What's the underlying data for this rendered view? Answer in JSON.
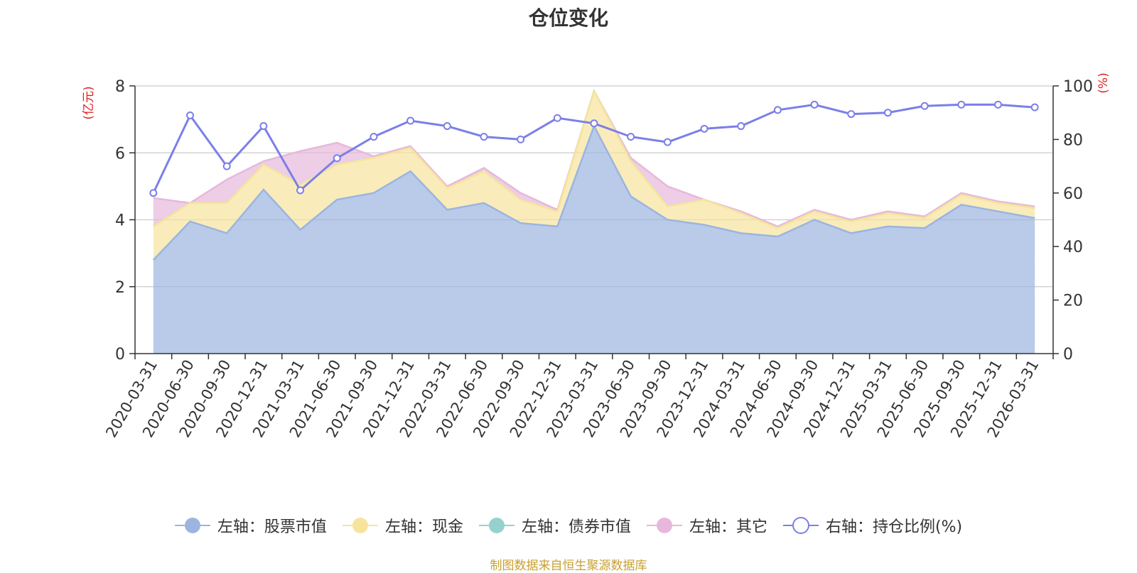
{
  "chart_data": {
    "type": "area",
    "title": "仓位变化",
    "source_note": "制图数据来自恒生聚源数据库",
    "y_left_unit": "(亿元)",
    "y_right_unit": "(%)",
    "y_left_lim": [
      0,
      8
    ],
    "y_left_ticks": [
      "0",
      "2",
      "4",
      "6",
      "8"
    ],
    "y_right_lim": [
      0,
      100
    ],
    "y_right_ticks": [
      "0",
      "20",
      "40",
      "60",
      "80",
      "100"
    ],
    "grid": true,
    "legend_position": "bottom",
    "categories": [
      "2020-03-31",
      "2020-06-30",
      "2020-09-30",
      "2020-12-31",
      "2021-03-31",
      "2021-06-30",
      "2021-09-30",
      "2021-12-31",
      "2022-03-31",
      "2022-06-30",
      "2022-09-30",
      "2022-12-31",
      "2023-03-31",
      "2023-06-30",
      "2023-09-30",
      "2023-12-31",
      "2024-03-31",
      "2024-06-30",
      "2024-09-30",
      "2024-12-31",
      "2025-03-31",
      "2025-06-30",
      "2025-09-30",
      "2025-12-31",
      "2026-03-31"
    ],
    "series": [
      {
        "name": "左轴：股票市值",
        "axis": "left",
        "color": "#9bb5e0",
        "values": [
          2.8,
          3.95,
          3.6,
          4.9,
          3.7,
          4.6,
          4.8,
          5.45,
          4.3,
          4.5,
          3.9,
          3.8,
          6.8,
          4.7,
          4.0,
          3.85,
          3.6,
          3.5,
          4.0,
          3.6,
          3.8,
          3.75,
          4.45,
          4.25,
          4.05
        ]
      },
      {
        "name": "左轴：现金",
        "axis": "left",
        "color": "#f7e49c",
        "values": [
          1.0,
          0.55,
          0.9,
          0.75,
          1.35,
          1.05,
          1.05,
          0.7,
          0.65,
          0.95,
          0.7,
          0.45,
          1.05,
          1.05,
          0.4,
          0.75,
          0.6,
          0.25,
          0.25,
          0.35,
          0.4,
          0.3,
          0.3,
          0.25,
          0.3
        ]
      },
      {
        "name": "左轴：债券市值",
        "axis": "left",
        "color": "#95d2cf",
        "values": [
          0,
          0,
          0,
          0,
          0,
          0,
          0,
          0,
          0,
          0,
          0,
          0,
          0,
          0,
          0,
          0,
          0,
          0,
          0,
          0,
          0,
          0,
          0,
          0,
          0
        ]
      },
      {
        "name": "左轴：其它",
        "axis": "left",
        "color": "#e7b8dc",
        "values": [
          0.85,
          0.0,
          0.7,
          0.1,
          1.0,
          0.65,
          0.05,
          0.05,
          0.05,
          0.1,
          0.2,
          0.05,
          0.0,
          0.1,
          0.6,
          0.0,
          0.05,
          0.05,
          0.05,
          0.05,
          0.05,
          0.05,
          0.05,
          0.05,
          0.05
        ]
      },
      {
        "name": "右轴：持仓比例(%)",
        "axis": "right",
        "color": "#7b7fe8",
        "values": [
          60,
          89,
          70,
          85,
          61,
          73,
          81,
          87,
          85,
          81,
          80,
          88,
          86,
          81,
          79,
          84,
          85,
          91,
          93,
          89.5,
          90,
          92.5,
          93,
          93,
          92
        ]
      }
    ]
  }
}
